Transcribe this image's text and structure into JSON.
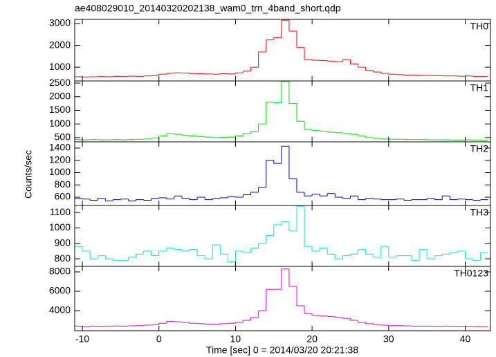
{
  "chart_data": {
    "type": "step",
    "title": "ae408029010_20140320202138_wam0_trn_4band_short.qdp",
    "xlabel": "Time [sec] 0 = 2014/03/20 20:21:38",
    "ylabel": "Counts/sec",
    "xlim": [
      -11,
      43.3
    ],
    "xticks": [
      -10,
      0,
      10,
      20,
      30,
      40
    ],
    "x": [
      -10.5,
      -9.5,
      -8.5,
      -7.5,
      -6.5,
      -5.5,
      -4.5,
      -3.5,
      -2.5,
      -1.5,
      -0.5,
      0.5,
      1.5,
      2.5,
      3.5,
      4.5,
      5.5,
      6.5,
      7.5,
      8.5,
      9.5,
      10.5,
      11.5,
      12.5,
      13.5,
      14.5,
      15.5,
      16.5,
      17.5,
      18.5,
      19.5,
      20.5,
      21.5,
      22.5,
      23.5,
      24.5,
      25.5,
      26.5,
      27.5,
      28.5,
      29.5,
      30.5,
      31.5,
      32.5,
      33.5,
      34.5,
      35.5,
      36.5,
      37.5,
      38.5,
      39.5,
      40.5,
      41.5,
      42.5
    ],
    "series": [
      {
        "name": "TH0",
        "color": "#ff0000",
        "ylim": [
          370,
          3190
        ],
        "yticks": [
          1000,
          2000,
          3000
        ],
        "values": [
          560,
          550,
          560,
          570,
          560,
          580,
          570,
          590,
          580,
          600,
          620,
          680,
          720,
          740,
          730,
          710,
          700,
          690,
          680,
          700,
          690,
          740,
          820,
          1000,
          1700,
          2250,
          2350,
          3150,
          2650,
          1900,
          1350,
          1320,
          1300,
          1280,
          1250,
          1350,
          1150,
          1000,
          850,
          780,
          720,
          680,
          660,
          640,
          640,
          620,
          620,
          610,
          600,
          600,
          590,
          600,
          580,
          570
        ]
      },
      {
        "name": "TH1",
        "color": "#00dd00",
        "ylim": [
          345,
          2578
        ],
        "yticks": [
          500,
          1000,
          1500,
          2000,
          2500
        ],
        "values": [
          430,
          420,
          430,
          420,
          420,
          430,
          420,
          430,
          440,
          450,
          480,
          560,
          640,
          620,
          580,
          560,
          540,
          520,
          500,
          510,
          520,
          560,
          640,
          720,
          1000,
          1800,
          1780,
          2560,
          1750,
          1100,
          800,
          760,
          740,
          700,
          680,
          650,
          620,
          560,
          500,
          470,
          450,
          440,
          440,
          430,
          430,
          430,
          420,
          420,
          420,
          410,
          410,
          420,
          410,
          400
        ]
      },
      {
        "name": "TH2",
        "color": "#0000cc",
        "ylim": [
          465,
          1501
        ],
        "yticks": [
          600,
          800,
          1000,
          1200,
          1400
        ],
        "values": [
          580,
          570,
          550,
          580,
          540,
          560,
          570,
          540,
          560,
          550,
          580,
          590,
          570,
          620,
          580,
          560,
          600,
          560,
          580,
          590,
          610,
          600,
          640,
          680,
          760,
          1200,
          1150,
          1430,
          900,
          680,
          620,
          650,
          620,
          660,
          600,
          580,
          620,
          560,
          580,
          570,
          560,
          560,
          570,
          550,
          560,
          560,
          580,
          560,
          620,
          560,
          570,
          560,
          550,
          560
        ]
      },
      {
        "name": "TH3",
        "color": "#00e5e5",
        "ylim": [
          751,
          1145
        ],
        "yticks": [
          800,
          900,
          1000,
          1100
        ],
        "values": [
          880,
          850,
          800,
          820,
          800,
          790,
          790,
          810,
          830,
          850,
          820,
          850,
          870,
          860,
          850,
          860,
          820,
          800,
          890,
          830,
          780,
          850,
          840,
          870,
          900,
          950,
          1020,
          1040,
          980,
          1140,
          880,
          850,
          870,
          830,
          800,
          820,
          830,
          860,
          830,
          810,
          880,
          810,
          820,
          820,
          790,
          860,
          800,
          820,
          830,
          840,
          850,
          800,
          790,
          840
        ]
      },
      {
        "name": "TH0123",
        "color": "#dd00dd",
        "ylim": [
          1929,
          8571
        ],
        "yticks": [
          4000,
          6000,
          8000
        ],
        "values": [
          2400,
          2350,
          2400,
          2380,
          2400,
          2420,
          2400,
          2430,
          2450,
          2500,
          2550,
          2700,
          2900,
          2850,
          2800,
          2700,
          2650,
          2600,
          2600,
          2650,
          2700,
          2800,
          3000,
          3300,
          4000,
          6200,
          6200,
          8300,
          6500,
          4500,
          3700,
          3500,
          3450,
          3400,
          3300,
          3200,
          3000,
          2800,
          2650,
          2550,
          2500,
          2450,
          2450,
          2420,
          2400,
          2400,
          2400,
          2380,
          2400,
          2380,
          2380,
          2380,
          2370,
          2350
        ]
      }
    ]
  }
}
